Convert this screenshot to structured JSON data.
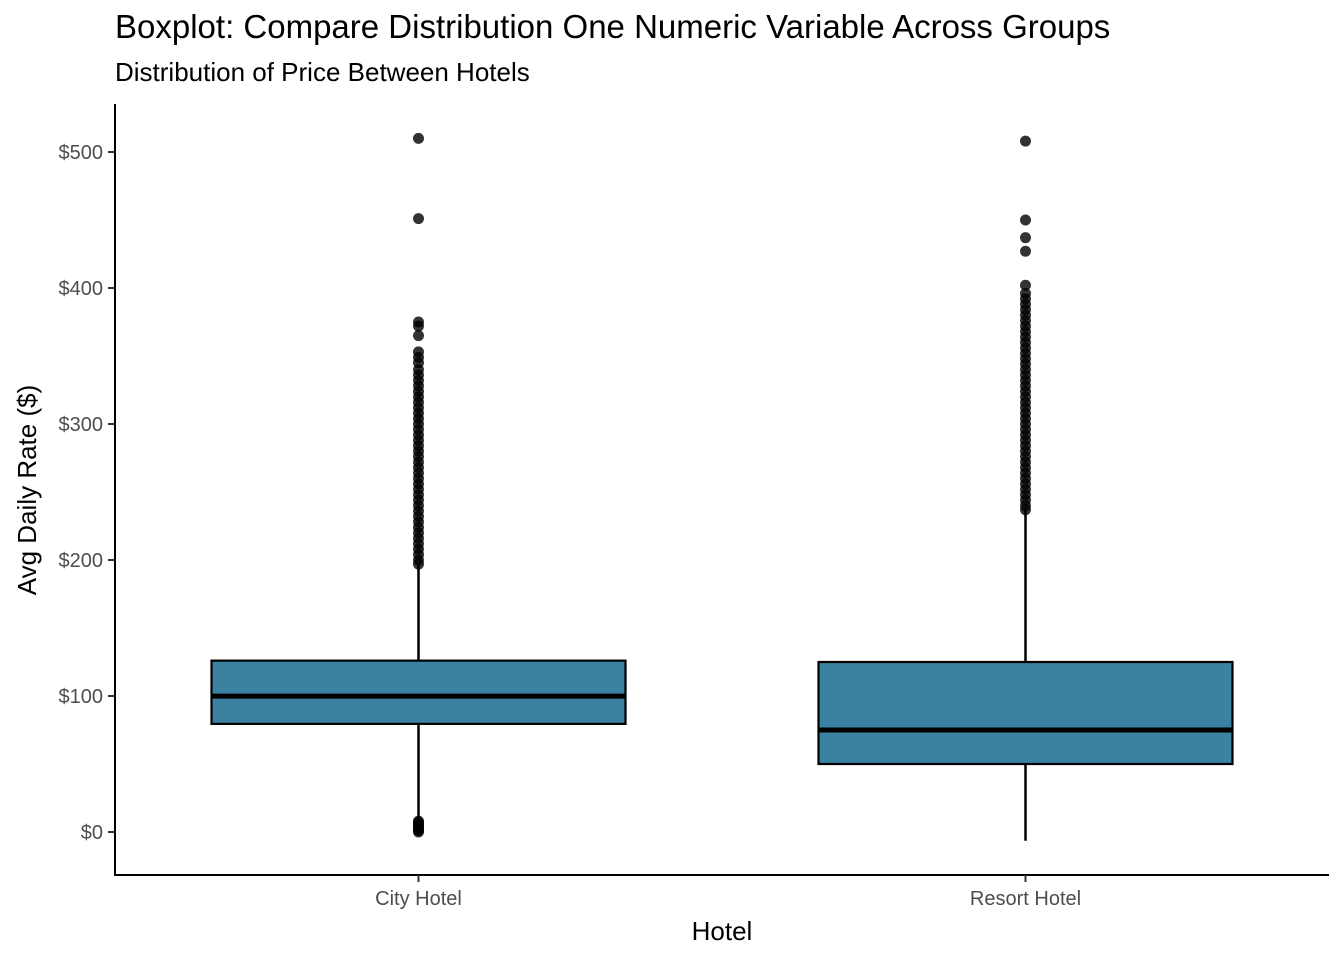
{
  "chart_data": {
    "type": "boxplot",
    "title": "Boxplot: Compare Distribution One Numeric Variable Across Groups",
    "subtitle": "Distribution of Price Between Hotels",
    "xlabel": "Hotel",
    "ylabel": "Avg Daily Rate ($)",
    "ylim": [
      -32,
      535
    ],
    "yticks": [
      0,
      100,
      200,
      300,
      400,
      500
    ],
    "ytick_labels": [
      "$0",
      "$100",
      "$200",
      "$300",
      "$400",
      "$500"
    ],
    "grid": false,
    "fill_color": "#3b81a1",
    "categories": [
      "City Hotel",
      "Resort Hotel"
    ],
    "boxes": [
      {
        "category": "City Hotel",
        "q1": 79.5,
        "median": 99.9,
        "q3": 126,
        "whisker_low": 0,
        "whisker_high": 196,
        "outliers": [
          0,
          1,
          2,
          3,
          4,
          5,
          6,
          7,
          8,
          197,
          200,
          204,
          208,
          212,
          216,
          220,
          224,
          228,
          232,
          236,
          240,
          244,
          248,
          252,
          256,
          260,
          264,
          268,
          272,
          276,
          280,
          284,
          288,
          292,
          296,
          300,
          304,
          308,
          312,
          316,
          320,
          324,
          328,
          332,
          336,
          340,
          345,
          349,
          353,
          365,
          372,
          375,
          451,
          510
        ]
      },
      {
        "category": "Resort Hotel",
        "q1": 50,
        "median": 75,
        "q3": 125,
        "whisker_low": -6.4,
        "whisker_high": 237,
        "outliers": [
          237,
          240,
          244,
          248,
          252,
          256,
          260,
          264,
          268,
          272,
          276,
          280,
          284,
          288,
          292,
          296,
          300,
          304,
          308,
          312,
          316,
          320,
          324,
          328,
          332,
          336,
          340,
          344,
          348,
          352,
          356,
          360,
          364,
          368,
          372,
          376,
          380,
          384,
          388,
          392,
          396,
          402,
          427,
          437,
          450,
          508
        ]
      }
    ]
  }
}
